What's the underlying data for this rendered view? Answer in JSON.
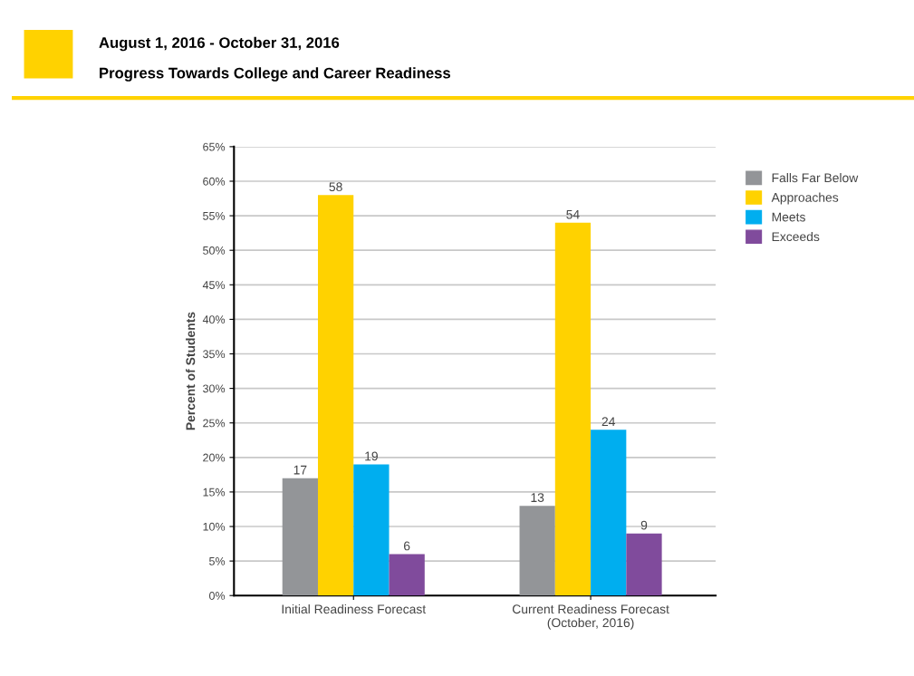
{
  "chart_data": {
    "type": "bar",
    "title": "August 1, 2016 - October 31, 2016",
    "subtitle": "Progress Towards College and Career Readiness",
    "ylabel": "Percent of Students",
    "categories": [
      "Initial Readiness Forecast",
      "Current Readiness Forecast\n(October, 2016)"
    ],
    "series": [
      {
        "name": "Falls Far Below",
        "color": "#939598",
        "values": [
          17,
          13
        ]
      },
      {
        "name": "Approaches",
        "color": "#ffd200",
        "values": [
          58,
          54
        ]
      },
      {
        "name": "Meets",
        "color": "#00aeef",
        "values": [
          19,
          24
        ]
      },
      {
        "name": "Exceeds",
        "color": "#804b9c",
        "values": [
          6,
          9
        ]
      }
    ],
    "ylim": [
      0,
      65
    ],
    "yticks": [
      {
        "value": 0,
        "label": "0%"
      },
      {
        "value": 5,
        "label": "5%"
      },
      {
        "value": 10,
        "label": "10%"
      },
      {
        "value": 15,
        "label": "15%"
      },
      {
        "value": 20,
        "label": "20%"
      },
      {
        "value": 25,
        "label": "25%"
      },
      {
        "value": 30,
        "label": "30%"
      },
      {
        "value": 35,
        "label": "35%"
      },
      {
        "value": 40,
        "label": "40%"
      },
      {
        "value": 45,
        "label": "45%"
      },
      {
        "value": 50,
        "label": "50%"
      },
      {
        "value": 55,
        "label": "55%"
      },
      {
        "value": 60,
        "label": "60%"
      },
      {
        "value": 65,
        "label": "65%"
      }
    ],
    "grid": "y",
    "legend": "right",
    "data_labels": true
  }
}
